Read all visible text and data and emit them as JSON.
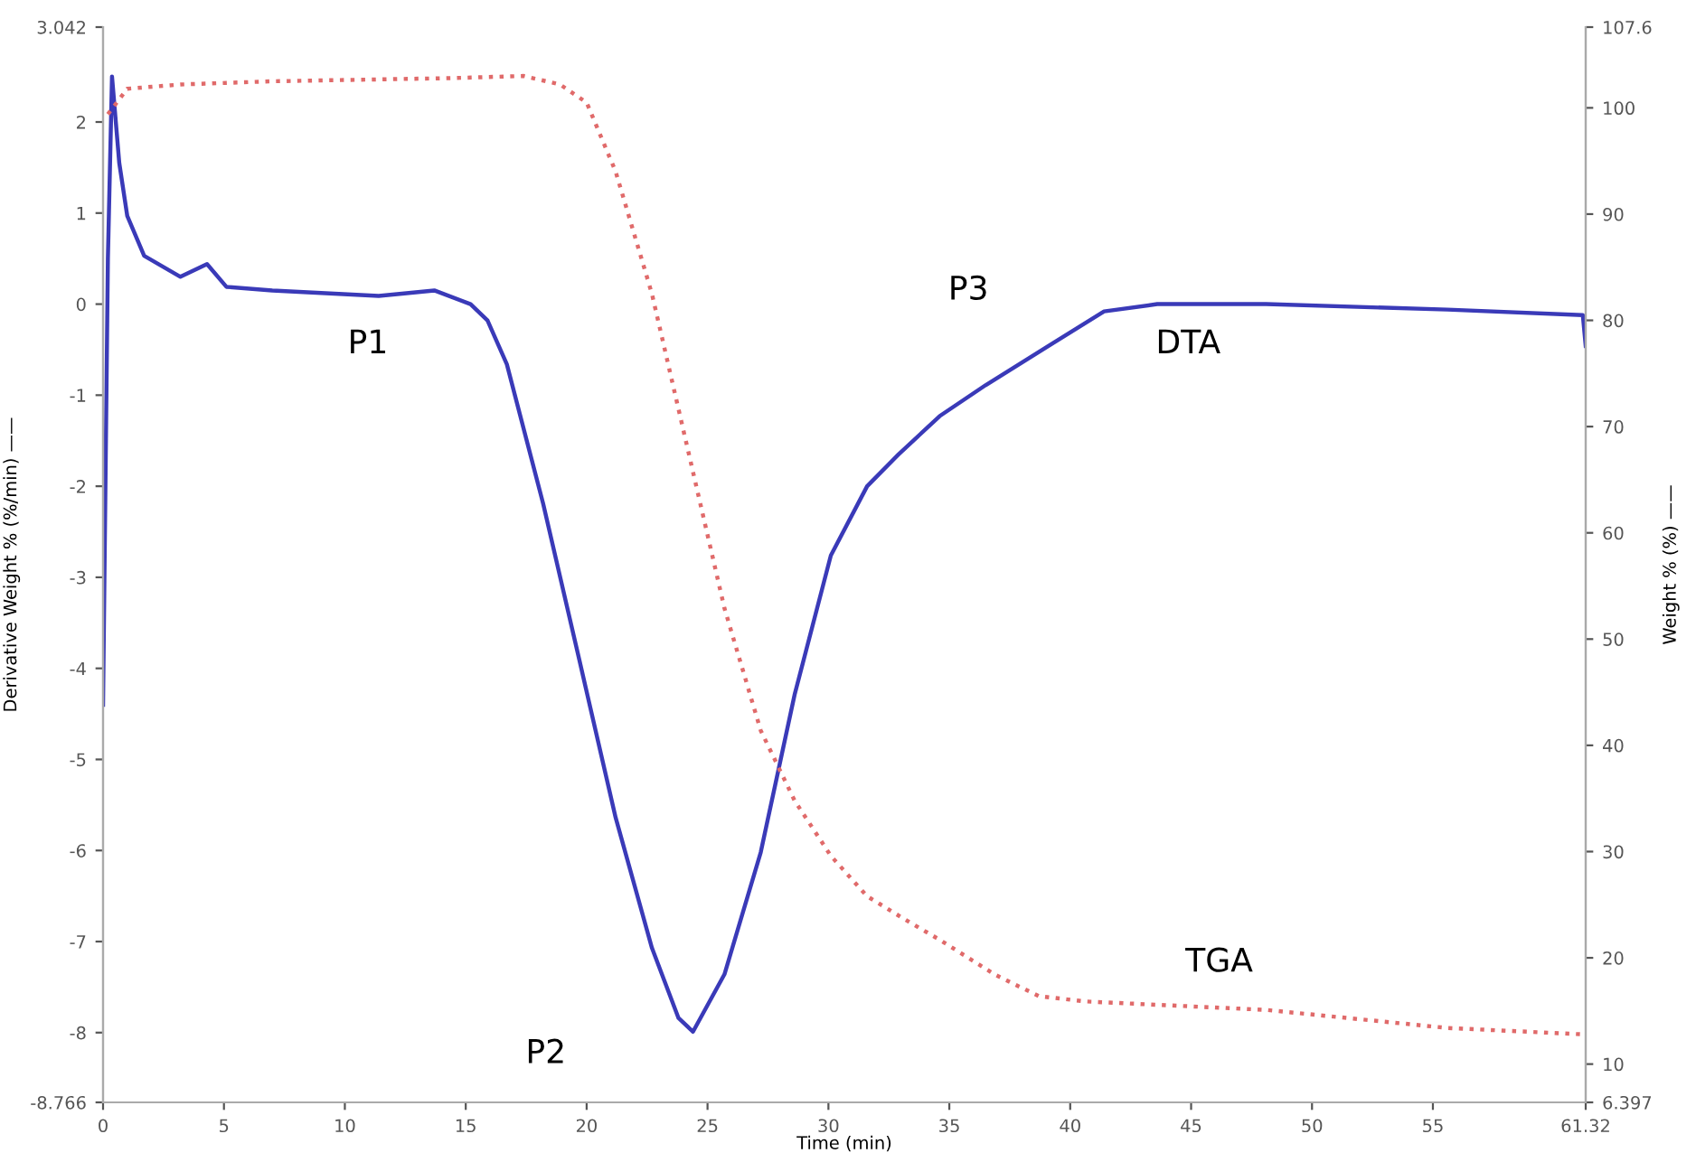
{
  "chart_data": {
    "type": "line",
    "xlabel": "Time (min)",
    "ylabel": "Derivative Weight % (%/min) ——",
    "y2label": "Weight % (%) ——",
    "xlim": [
      0,
      61.32
    ],
    "xticks": [
      0,
      5,
      10,
      15,
      20,
      25,
      30,
      35,
      40,
      45,
      50,
      55,
      61.32
    ],
    "ylim": [
      -8.766,
      3.042
    ],
    "yticks": [
      -8.766,
      -8,
      -7,
      -6,
      -5,
      -4,
      -3,
      -2,
      -1,
      0,
      1,
      2,
      3.042
    ],
    "y2lim": [
      6.397,
      107.6
    ],
    "y2ticks": [
      6.397,
      10,
      20,
      30,
      40,
      50,
      60,
      70,
      80,
      90,
      100,
      107.6
    ],
    "grid": false,
    "legend": false,
    "series": [
      {
        "color": "#3a3ab8",
        "line_style": "solid",
        "x": [
          0,
          0.2,
          0.37,
          0.67,
          1,
          1.7,
          3.2,
          4.3,
          5.1,
          7,
          11.4,
          13.7,
          15.2,
          15.9,
          16.7,
          18.2,
          19.7,
          21.2,
          22.7,
          23.8,
          24.4,
          25.7,
          27.2,
          28.6,
          30.1,
          31.6,
          32.9,
          34.6,
          36.5,
          39.1,
          41.4,
          43.6,
          48.1,
          55.6,
          61.2,
          61.32
        ],
        "values": [
          -4.4,
          0.5,
          2.5,
          1.55,
          0.97,
          0.53,
          0.3,
          0.44,
          0.19,
          0.15,
          0.09,
          0.15,
          0.0,
          -0.18,
          -0.66,
          -2.19,
          -3.91,
          -5.64,
          -7.07,
          -7.84,
          -7.99,
          -7.36,
          -6.02,
          -4.29,
          -2.76,
          -2.0,
          -1.65,
          -1.23,
          -0.89,
          -0.46,
          -0.08,
          0.0,
          0.0,
          -0.06,
          -0.12,
          -0.46
        ]
      },
      {
        "color": "#e06a6a",
        "line_style": "dotted",
        "axis": "y2",
        "x": [
          0.2,
          1,
          3.2,
          7,
          14.4,
          17.4,
          18.9,
          20,
          21.2,
          22.7,
          24.2,
          25.7,
          27.2,
          28.6,
          30.1,
          31.6,
          33.1,
          34.6,
          36.9,
          38.7,
          40.6,
          48.1,
          55.6,
          61.2
        ],
        "values": [
          99.4,
          101.8,
          102.2,
          102.5,
          102.8,
          103,
          102.2,
          100.5,
          94,
          82.5,
          67.7,
          52.9,
          41.4,
          34.8,
          29.6,
          25.8,
          23.7,
          21.7,
          18.4,
          16.4,
          15.9,
          15.1,
          13.4,
          12.8
        ]
      }
    ],
    "annotations": [
      "P1",
      "P2",
      "P3",
      "DTA",
      "TGA"
    ]
  }
}
